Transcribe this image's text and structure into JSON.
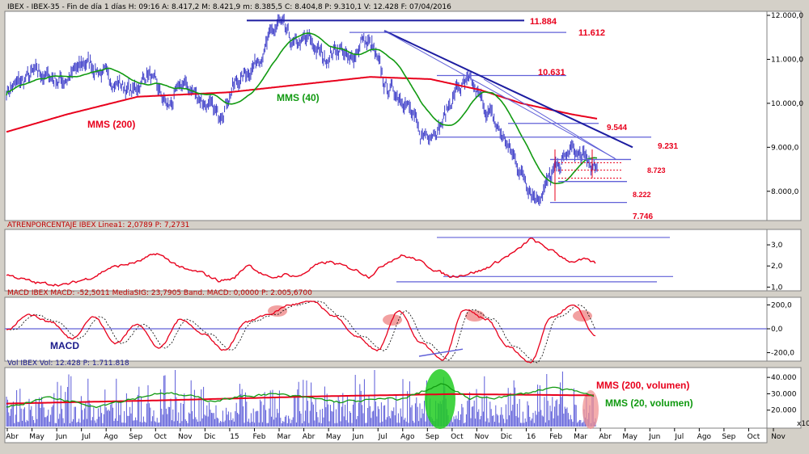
{
  "panels": {
    "price": {
      "header": "IBEX - IBEX-35 - Fin de día 1 días H: 09:16 A: 8.417,2 M: 8.421,9 m: 8.385,5 C: 8.404,8 P: 9.310,1 V: 12.428 F: 07/04/2016",
      "level_labels": [
        "11.884",
        "11.612",
        "10.631",
        "9.544",
        "9.231",
        "8.723",
        "8.222",
        "7.746"
      ],
      "annotations": {
        "mms200": "MMS (200)",
        "mms40": "MMS (40)"
      },
      "y_ticks": [
        "12.000,0",
        "11.000,0",
        "10.000,0",
        "9.000,0",
        "8.000,0"
      ]
    },
    "atr": {
      "header": "ATRENPORCENTAJE  IBEX Linea1: 2,0789  P: 7,2731",
      "y_ticks": [
        "3,0",
        "2,0",
        "1,0"
      ]
    },
    "macd": {
      "header": "MACD  IBEX MACD: -52,5011  MediaSIG: 23,7905  Band. MACD: 0,0000  P: 2.005,6700",
      "label": "MACD",
      "y_ticks": [
        "200,0",
        "0,0",
        "-200,0"
      ]
    },
    "vol": {
      "header": "Vol  IBEX Vol: 12.428  P: 1.711.818",
      "annotations": {
        "mms200": "MMS (200, volumen)",
        "mms20": "MMS (20, volumen)"
      },
      "y_ticks": [
        "40.000",
        "30.000",
        "20.000"
      ],
      "scale_label": "x10"
    }
  },
  "x_axis": {
    "labels": [
      "Abr",
      "May",
      "Jun",
      "Jul",
      "Ago",
      "Sep",
      "Oct",
      "Nov",
      "Dic",
      "15",
      "Feb",
      "Mar",
      "Abr",
      "May",
      "Jun",
      "Jul",
      "Ago",
      "Sep",
      "Oct",
      "Nov",
      "Dic",
      "16",
      "Feb",
      "Mar",
      "Abr",
      "May",
      "Jun",
      "Jul",
      "Ago",
      "Sep",
      "Oct",
      "Nov"
    ]
  },
  "colors": {
    "background": "#ffffff",
    "frame": "#d4d0c8",
    "price": "#3c3cc8",
    "mms200": "#e8001c",
    "mms40": "#119a11",
    "trendline": "#1c1ca0",
    "level_line": "#6060d8",
    "atr": "#e8001c",
    "macd": "#e8001c",
    "volume": "#5a5ad8",
    "highlight_red": "#f09090",
    "highlight_green": "#22cc22"
  },
  "chart_data": [
    {
      "type": "line",
      "title": "IBEX-35 (daily)",
      "x_range": [
        "2014-04-01",
        "2016-04-07"
      ],
      "ylim": [
        7500,
        12000
      ],
      "scale": "linear",
      "series": [
        {
          "name": "IBEX",
          "x": [
            "2014-04",
            "2014-06",
            "2014-08",
            "2014-10",
            "2014-12",
            "2015-02",
            "2015-04",
            "2015-06",
            "2015-08",
            "2015-09",
            "2015-11",
            "2016-01",
            "2016-02",
            "2016-03",
            "2016-04"
          ],
          "values": [
            10400,
            10950,
            10200,
            10500,
            10400,
            10800,
            11800,
            11200,
            10300,
            9500,
            10450,
            8900,
            7750,
            8950,
            8405
          ]
        },
        {
          "name": "MMS (200)",
          "values": [
            9300,
            9900,
            10200,
            10250,
            10300,
            10350,
            10500,
            10650,
            10700,
            10550,
            10250,
            10000,
            9900,
            9700,
            9650
          ]
        },
        {
          "name": "MMS (40)",
          "values": [
            10200,
            10700,
            10550,
            10350,
            10300,
            10400,
            11400,
            11300,
            10800,
            10000,
            10150,
            9800,
            8700,
            8500,
            8600
          ]
        }
      ],
      "levels": [
        11884,
        11612,
        10631,
        9544,
        9231,
        8723,
        8222,
        7746
      ]
    },
    {
      "type": "line",
      "title": "ATRENPORCENTAJE",
      "ylim": [
        1.0,
        3.5
      ],
      "series": [
        {
          "name": "Linea1",
          "values": [
            1.6,
            1.3,
            1.1,
            1.3,
            1.9,
            2.4,
            1.8,
            1.5,
            1.3,
            1.6,
            1.5,
            1.8,
            1.6,
            1.4,
            1.7,
            2.2,
            1.9,
            2.2,
            2.4,
            1.7,
            1.5,
            1.6,
            2.2,
            2.8,
            3.3,
            2.5,
            2.1
          ]
        }
      ]
    },
    {
      "type": "line",
      "title": "MACD",
      "ylim": [
        -300,
        300
      ],
      "series": [
        {
          "name": "MACD",
          "values": [
            -10,
            120,
            60,
            -80,
            100,
            -120,
            40,
            -160,
            80,
            -40,
            -180,
            60,
            120,
            200,
            230,
            110,
            -60,
            -180,
            150,
            -120,
            -260,
            160,
            80,
            -150,
            -280,
            100,
            200,
            -52
          ]
        }
      ]
    },
    {
      "type": "bar",
      "title": "Vol",
      "ylim": [
        10000,
        45000
      ],
      "series": [
        {
          "name": "MMS (200, volumen)",
          "values": [
            24000,
            26000,
            27000,
            28000,
            29000,
            29500,
            29000
          ]
        },
        {
          "name": "MMS (20, volumen)",
          "values": [
            22000,
            27000,
            24000,
            31000,
            26000,
            34000,
            30000
          ]
        }
      ]
    }
  ]
}
